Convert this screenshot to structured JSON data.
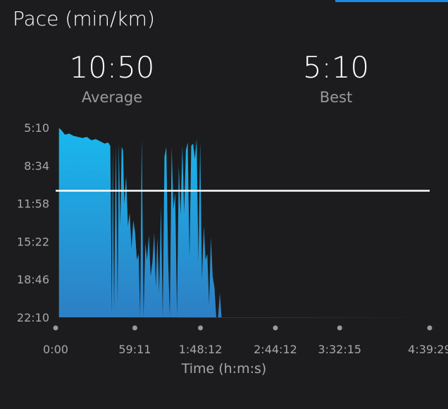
{
  "header": {
    "title": "Pace (min/km)"
  },
  "stats": {
    "average": {
      "value": "10:50",
      "label": "Average"
    },
    "best": {
      "value": "5:10",
      "label": "Best"
    }
  },
  "colors": {
    "accent": "#1e88e5",
    "background": "#1c1c1e",
    "area_top": "#18b8ee",
    "area_bottom": "#2e7fc4",
    "average_line": "#ffffff"
  },
  "chart_data": {
    "type": "area",
    "xlabel": "Time (h:m:s)",
    "x_ticks": [
      "0:00",
      "59:11",
      "1:48:12",
      "2:44:12",
      "3:32:15",
      "4:39:29"
    ],
    "x_tick_seconds": [
      0,
      3551,
      6492,
      9852,
      12735,
      16769
    ],
    "y_ticks": [
      "5:10",
      "8:34",
      "11:58",
      "15:22",
      "18:46",
      "22:10"
    ],
    "y_axis_minutes_per_km": [
      5.17,
      8.57,
      11.97,
      15.37,
      18.77,
      22.17
    ],
    "y_inverted": true,
    "average_line_min_per_km": 10.83,
    "series": [
      {
        "x_seconds": [
          150,
          260,
          420,
          600,
          800,
          1000,
          1200,
          1400,
          1600,
          1800,
          2000,
          2200,
          2350,
          2450,
          2520,
          2560,
          2620,
          2700,
          2780,
          2830,
          2900,
          2960,
          3020,
          3080,
          3160,
          3240,
          3320,
          3400,
          3480,
          3560,
          3640,
          3720,
          3790,
          3860,
          3940,
          4020,
          4100,
          4180,
          4260,
          4340,
          4420,
          4490,
          4560,
          4640,
          4720,
          4800,
          4880,
          4960,
          5040,
          5120,
          5200,
          5280,
          5360,
          5440,
          5520,
          5600,
          5680,
          5760,
          5840,
          5920,
          6000,
          6080,
          6160,
          6240,
          6320,
          6400,
          6480,
          6560,
          6640,
          6720,
          6800,
          6880,
          6960,
          7040,
          7120,
          7200,
          7280,
          7360,
          7440,
          7520,
          7600,
          7680,
          7760,
          7840,
          7920,
          8000,
          8080,
          8160,
          8240,
          8400,
          8600,
          8800,
          9000,
          9200,
          9400,
          9600,
          9700,
          9780,
          9840,
          9900,
          10000,
          10200,
          10400,
          10500,
          10600,
          10700,
          10800,
          10880,
          10960,
          11040,
          11120,
          11200,
          11280,
          11360,
          11440,
          11520,
          11600,
          11680,
          11760,
          11840,
          11920,
          12000,
          12080,
          12160,
          12240,
          12320,
          12400,
          12480,
          12560,
          12640,
          12720,
          12800,
          12880,
          12960,
          13040,
          13120,
          13200,
          13280,
          13360,
          13440,
          13520,
          13600,
          13680,
          13760,
          13840,
          13920,
          14000,
          14080,
          14160,
          14240,
          14320,
          14400,
          14480,
          14560,
          14640,
          14720,
          14800,
          14880,
          14960,
          15040,
          15120,
          15200,
          15280,
          15360,
          15440,
          15520,
          15600,
          15680,
          15760,
          15840,
          15920,
          16000,
          16080,
          16160,
          16240,
          16320,
          16400,
          16480,
          16560,
          16640,
          16769
        ],
        "y_min_per_km": [
          5.2,
          5.4,
          5.8,
          5.7,
          5.9,
          6.0,
          6.1,
          6.0,
          6.3,
          6.2,
          6.4,
          6.6,
          6.5,
          6.8,
          22.0,
          7.0,
          21.5,
          6.8,
          21.0,
          6.6,
          14.0,
          6.9,
          7.2,
          12.0,
          9.5,
          14.0,
          12.8,
          16.0,
          13.5,
          14.5,
          17.0,
          16.5,
          22.1,
          6.2,
          22.1,
          15.5,
          17.0,
          14.8,
          18.5,
          17.2,
          14.6,
          19.5,
          15.0,
          20.0,
          12.2,
          22.1,
          7.8,
          6.9,
          16.8,
          22.1,
          6.9,
          12.5,
          11.0,
          22.1,
          8.5,
          13.0,
          6.8,
          12.8,
          7.2,
          6.5,
          16.8,
          6.8,
          6.6,
          8.0,
          6.2,
          17.2,
          6.5,
          18.8,
          14.0,
          17.0,
          16.5,
          21.0,
          15.0,
          18.5,
          19.5,
          22.2,
          22.2,
          20.0,
          22.2,
          22.2,
          22.2,
          22.2,
          22.2,
          22.2,
          22.2,
          22.2,
          22.2,
          22.2,
          22.2,
          22.2,
          22.2,
          22.2,
          22.2,
          22.2,
          22.2,
          22.2,
          22.2,
          22.2,
          22.2,
          22.2,
          22.2,
          22.2,
          22.2,
          22.2,
          22.2,
          22.2,
          22.2,
          22.2,
          22.2,
          22.2,
          22.2,
          22.2,
          22.2,
          22.2,
          22.2,
          22.2,
          22.2,
          22.2,
          22.2,
          22.2,
          22.2,
          22.2,
          22.2,
          22.2,
          22.2,
          22.2,
          22.2,
          22.2,
          22.2,
          22.2,
          22.2,
          22.2,
          22.2,
          22.2,
          22.2,
          22.2,
          22.2,
          22.2,
          22.2,
          22.2,
          22.2,
          22.2,
          22.2,
          22.2,
          22.2,
          22.2,
          22.2,
          22.2,
          22.2,
          22.2,
          22.2,
          22.2,
          22.2,
          22.2,
          22.2,
          22.2,
          22.2,
          22.2,
          22.2,
          22.2,
          22.2,
          22.2,
          22.2,
          22.2,
          22.2,
          22.2,
          22.2,
          22.2,
          22.2,
          22.2,
          22.2,
          22.2,
          22.2,
          22.2,
          22.2,
          22.2,
          22.2,
          22.2,
          22.2
        ]
      }
    ]
  }
}
